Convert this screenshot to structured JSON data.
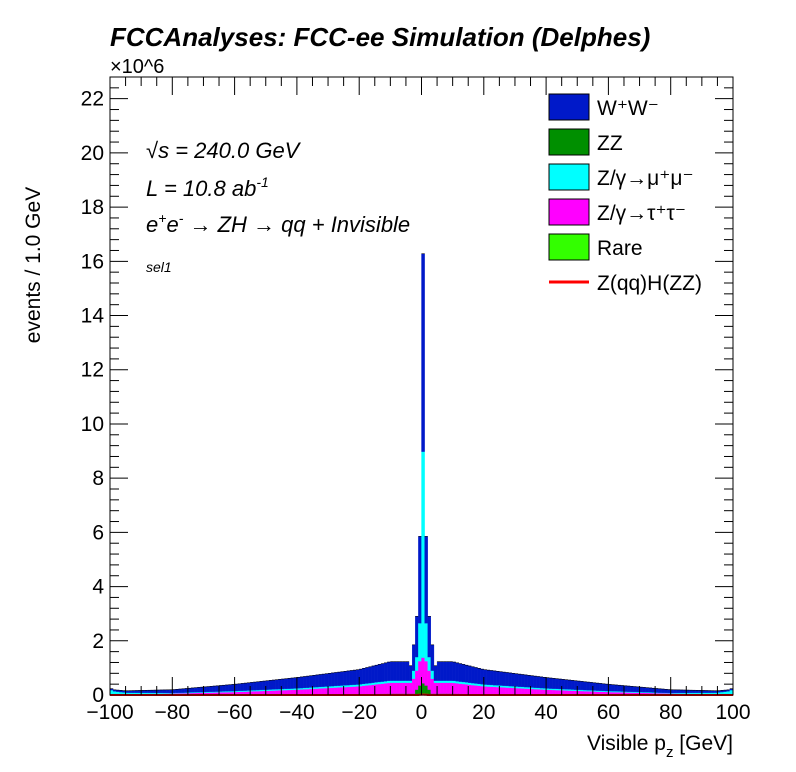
{
  "chart_data": {
    "type": "bar",
    "stacked": true,
    "title": "FCCAnalyses: FCC-ee Simulation (Delphes)",
    "xlabel": "Visible p_z [GeV]",
    "ylabel": "events / 1.0 GeV",
    "y_exponent_label": "×10^6",
    "xlim": [
      -100,
      100
    ],
    "ylim": [
      0,
      22.8
    ],
    "y_unit_multiplier": 1000000,
    "bin_width": 1.0,
    "x_ticks": [
      -100,
      -80,
      -60,
      -40,
      -20,
      0,
      20,
      40,
      60,
      80,
      100
    ],
    "y_ticks": [
      0,
      2,
      4,
      6,
      8,
      10,
      12,
      14,
      16,
      18,
      20,
      22
    ],
    "annotations": {
      "sqrt_s": "= 240.0 GeV",
      "lumi": "L = 10.8 ab",
      "lumi_exp": "-1",
      "process": "→ ZH → qq + Invisible",
      "selection": "sel1"
    },
    "legend": {
      "position": "top-right",
      "entries": [
        {
          "label": "W⁺W⁻",
          "color": "#0019c9",
          "kind": "fill"
        },
        {
          "label": "ZZ",
          "color": "#008f00",
          "kind": "fill"
        },
        {
          "label": "Z/γ→μ⁺μ⁻",
          "color": "#00ffff",
          "kind": "fill"
        },
        {
          "label": "Z/γ→τ⁺τ⁻",
          "color": "#ff00ff",
          "kind": "fill"
        },
        {
          "label": "Rare",
          "color": "#33ff00",
          "kind": "fill"
        },
        {
          "label": "Z(qq)H(ZZ)",
          "color": "#ff0000",
          "kind": "line"
        }
      ]
    },
    "stack_order": [
      "Rare",
      "ZZ",
      "Z/γ→τ⁺τ⁻",
      "Z/γ→μ⁺μ⁻",
      "W⁺W⁻"
    ],
    "series": [
      {
        "name": "W⁺W⁻",
        "color": "#0019c9",
        "profile": "wide_peak",
        "center_bin_values": {
          "-4": 0.55,
          "-3": 0.95,
          "-2": 1.5,
          "-1": 3.2,
          "0": 7.3,
          "1": 3.2,
          "2": 1.5,
          "3": 0.95,
          "4": 0.55
        },
        "sample_values": {
          "-100": 0.05,
          "-80": 0.12,
          "-60": 0.25,
          "-40": 0.4,
          "-20": 0.55,
          "-10": 0.7,
          "10": 0.7,
          "20": 0.55,
          "40": 0.4,
          "60": 0.25,
          "80": 0.12,
          "100": 0.05
        }
      },
      {
        "name": "Z/γ→μ⁺μ⁻",
        "color": "#00ffff",
        "center_bin_values": {
          "-3": 0.3,
          "-2": 0.5,
          "-1": 1.4,
          "0": 7.6,
          "1": 1.4,
          "2": 0.5,
          "3": 0.3
        },
        "sample_values": {
          "-100": 0.2,
          "-99": 0.12,
          "-95": 0.06,
          "-80": 0.02,
          "-40": 0.05,
          "-10": 0.08,
          "10": 0.08,
          "40": 0.05,
          "80": 0.02,
          "95": 0.06,
          "99": 0.12,
          "100": 0.2
        }
      },
      {
        "name": "Z/γ→τ⁺τ⁻",
        "color": "#ff00ff",
        "center_bin_values": {
          "-3": 0.55,
          "-2": 0.7,
          "-1": 0.9,
          "0": 0.95,
          "1": 0.9,
          "2": 0.7,
          "3": 0.55
        },
        "sample_values": {
          "-100": 0.02,
          "-80": 0.05,
          "-60": 0.1,
          "-40": 0.18,
          "-20": 0.3,
          "-10": 0.4,
          "10": 0.4,
          "20": 0.3,
          "40": 0.18,
          "60": 0.1,
          "80": 0.05,
          "100": 0.02
        }
      },
      {
        "name": "ZZ",
        "color": "#008f00",
        "center_bin_values": {
          "-2": 0.2,
          "-1": 0.35,
          "0": 0.4,
          "1": 0.35,
          "2": 0.2
        },
        "sample_values": {
          "-100": 0.0,
          "-20": 0.02,
          "-10": 0.05,
          "10": 0.05,
          "20": 0.02,
          "100": 0.0
        }
      },
      {
        "name": "Rare",
        "color": "#33ff00",
        "center_bin_values": {
          "0": 0.03
        },
        "sample_values": {
          "-100": 0.0,
          "100": 0.0
        }
      },
      {
        "name": "Z(qq)H(ZZ)",
        "color": "#ff0000",
        "kind": "line",
        "center_bin_values": {
          "-1": 0.01,
          "0": 0.015,
          "1": 0.01
        },
        "sample_values": {
          "-100": 0.0,
          "100": 0.0
        }
      }
    ]
  }
}
